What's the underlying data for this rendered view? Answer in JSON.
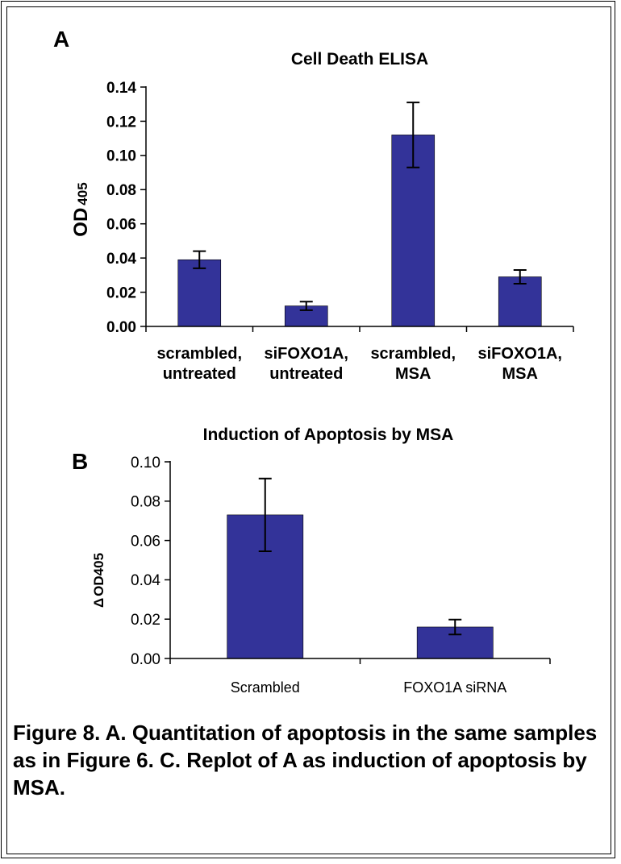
{
  "caption": "Figure 8.  A. Quantitation of apoptosis in the same samples as in Figure 6. C. Replot of A as induction of apoptosis by MSA.",
  "chart_data": [
    {
      "type": "bar",
      "panel_label": "A",
      "title": "Cell Death ELISA",
      "ylabel": "OD",
      "ylabel_subscript": "405",
      "xlabel": "",
      "ylim": [
        0,
        0.14
      ],
      "yticks": [
        "0.00",
        "0.02",
        "0.04",
        "0.06",
        "0.08",
        "0.10",
        "0.12",
        "0.14"
      ],
      "categories": [
        [
          "scrambled,",
          "untreated"
        ],
        [
          "siFOXO1A,",
          "untreated"
        ],
        [
          "scrambled,",
          "MSA"
        ],
        [
          "siFOXO1A,",
          "MSA"
        ]
      ],
      "values": [
        0.039,
        0.012,
        0.112,
        0.029
      ],
      "errors": [
        0.005,
        0.0025,
        0.019,
        0.004
      ],
      "bar_color": "#333399"
    },
    {
      "type": "bar",
      "panel_label": "B",
      "title": "Induction of Apoptosis by MSA",
      "ylabel": "OD405",
      "ylabel_prefix": "Δ",
      "xlabel": "",
      "ylim": [
        0,
        0.1
      ],
      "yticks": [
        "0.00",
        "0.02",
        "0.04",
        "0.06",
        "0.08",
        "0.10"
      ],
      "categories": [
        "Scrambled",
        "FOXO1A siRNA"
      ],
      "values": [
        0.073,
        0.016
      ],
      "errors": [
        0.0185,
        0.0038
      ],
      "bar_color": "#333399"
    }
  ]
}
